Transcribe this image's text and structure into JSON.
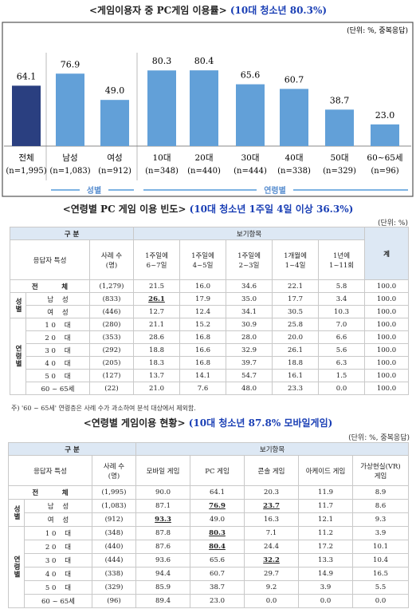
{
  "chart_data": {
    "type": "bar",
    "title": "<게임이용자 중 PC게임 이용률>",
    "highlight": "(10대 청소년 80.3%)",
    "unit": "(단위: %, 중복응답)",
    "categories": [
      "전체",
      "남성",
      "여성",
      "10대",
      "20대",
      "30대",
      "40대",
      "50대",
      "60~65세"
    ],
    "sample_sizes": [
      "(n=1,995)",
      "(n=1,083)",
      "(n=912)",
      "(n=348)",
      "(n=440)",
      "(n=444)",
      "(n=338)",
      "(n=329)",
      "(n=96)"
    ],
    "values": [
      64.1,
      76.9,
      49.0,
      80.3,
      80.4,
      65.6,
      60.7,
      38.7,
      23.0
    ],
    "value_labels": [
      "64.1",
      "76.9",
      "49.0",
      "80.3",
      "80.4",
      "65.6",
      "60.7",
      "38.7",
      "23.0"
    ],
    "color": "#62a0d8",
    "total_color": "#2a3f80",
    "group_labels": [
      "성별",
      "연령별"
    ]
  },
  "table1": {
    "title": "<연령별 PC 게임 이용 빈도>",
    "highlight": "(10대 청소년 1주일 4일 이상 36.3%)",
    "unit": "(단위: %)",
    "header": {
      "division": "구  분",
      "options": "보기항목",
      "respondent": "응답자 특성",
      "cases": "사례 수\n(명)",
      "columns": [
        "1주일에\n6~7일",
        "1주일에\n4~5일",
        "1주일에\n2~3일",
        "1개월에\n1~4일",
        "1년에\n1~11회",
        "계"
      ]
    },
    "sections": [
      {
        "label": null,
        "rows": [
          {
            "label": "전          체",
            "n": "(1,279)",
            "cells": [
              "21.5",
              "16.0",
              "34.6",
              "22.1",
              "5.8",
              "100.0"
            ]
          }
        ]
      },
      {
        "label": "성별",
        "rows": [
          {
            "label": "남    성",
            "n": "(833)",
            "cells": [
              {
                "text": "26.1",
                "emphasis": true
              },
              "17.9",
              "35.0",
              "17.7",
              "3.4",
              "100.0"
            ]
          },
          {
            "label": "여    성",
            "n": "(446)",
            "cells": [
              "12.7",
              "12.4",
              "34.1",
              "30.5",
              "10.3",
              "100.0"
            ]
          }
        ]
      },
      {
        "label": "연령별",
        "rows": [
          {
            "label": "1 0    대",
            "n": "(280)",
            "cells": [
              "21.1",
              "15.2",
              "30.9",
              "25.8",
              "7.0",
              "100.0"
            ]
          },
          {
            "label": "2 0    대",
            "n": "(353)",
            "cells": [
              "28.6",
              "16.8",
              "28.0",
              "20.0",
              "6.6",
              "100.0"
            ]
          },
          {
            "label": "3 0    대",
            "n": "(292)",
            "cells": [
              "18.8",
              "16.6",
              "32.9",
              "26.1",
              "5.6",
              "100.0"
            ]
          },
          {
            "label": "4 0    대",
            "n": "(205)",
            "cells": [
              "18.3",
              "16.8",
              "39.7",
              "18.8",
              "6.3",
              "100.0"
            ]
          },
          {
            "label": "5 0    대",
            "n": "(127)",
            "cells": [
              "13.7",
              "14.1",
              "54.7",
              "16.1",
              "1.5",
              "100.0"
            ]
          },
          {
            "label": "60 ~ 65세",
            "n": "(22)",
            "cells": [
              "21.0",
              "7.6",
              "48.0",
              "23.3",
              "0.0",
              "100.0"
            ]
          }
        ]
      }
    ],
    "footnote": "주) '60 ~ 65세' 연령층은 사례 수가 과소하여 분석 대상에서 제외함."
  },
  "table2": {
    "title": "<연령별 게임이용 현황>",
    "highlight": "(10대 청소년 87.8% 모바일게임)",
    "unit": "(단위: %, 중복응답)",
    "header": {
      "division": "구  분",
      "options": "보기항목",
      "respondent": "응답자 특성",
      "cases": "사례 수\n(명)",
      "columns": [
        "모바일 게임",
        "PC 게임",
        "콘솔 게임",
        "아케이드 게임",
        "가상현실(VR)\n게임"
      ]
    },
    "sections": [
      {
        "label": null,
        "rows": [
          {
            "label": "전          체",
            "n": "(1,995)",
            "cells": [
              "90.0",
              "64.1",
              "20.3",
              "11.9",
              "8.9"
            ]
          }
        ]
      },
      {
        "label": "성별",
        "rows": [
          {
            "label": "남    성",
            "n": "(1,083)",
            "cells": [
              "87.1",
              {
                "text": "76.9",
                "emphasis": true
              },
              {
                "text": "23.7",
                "emphasis": true
              },
              "11.7",
              "8.6"
            ]
          },
          {
            "label": "여    성",
            "n": "(912)",
            "cells": [
              {
                "text": "93.3",
                "emphasis": true
              },
              "49.0",
              "16.3",
              "12.1",
              "9.3"
            ]
          }
        ]
      },
      {
        "label": "연령별",
        "rows": [
          {
            "label": "1 0    대",
            "n": "(348)",
            "cells": [
              "87.8",
              {
                "text": "80.3",
                "emphasis": true
              },
              "7.1",
              "11.2",
              "3.9"
            ]
          },
          {
            "label": "2 0    대",
            "n": "(440)",
            "cells": [
              "87.6",
              {
                "text": "80.4",
                "emphasis": true
              },
              "24.4",
              "17.2",
              "10.1"
            ]
          },
          {
            "label": "3 0    대",
            "n": "(444)",
            "cells": [
              "93.6",
              "65.6",
              {
                "text": "32.2",
                "emphasis": true
              },
              "13.3",
              "10.4"
            ]
          },
          {
            "label": "4 0    대",
            "n": "(338)",
            "cells": [
              "94.4",
              "60.7",
              "29.7",
              "14.9",
              "16.5"
            ]
          },
          {
            "label": "5 0    대",
            "n": "(329)",
            "cells": [
              "85.9",
              "38.7",
              "9.2",
              "3.9",
              "5.5"
            ]
          },
          {
            "label": "60 ~ 65세",
            "n": "(96)",
            "cells": [
              "89.4",
              "23.0",
              "0.0",
              "0.0",
              "0.0"
            ]
          }
        ]
      }
    ]
  }
}
